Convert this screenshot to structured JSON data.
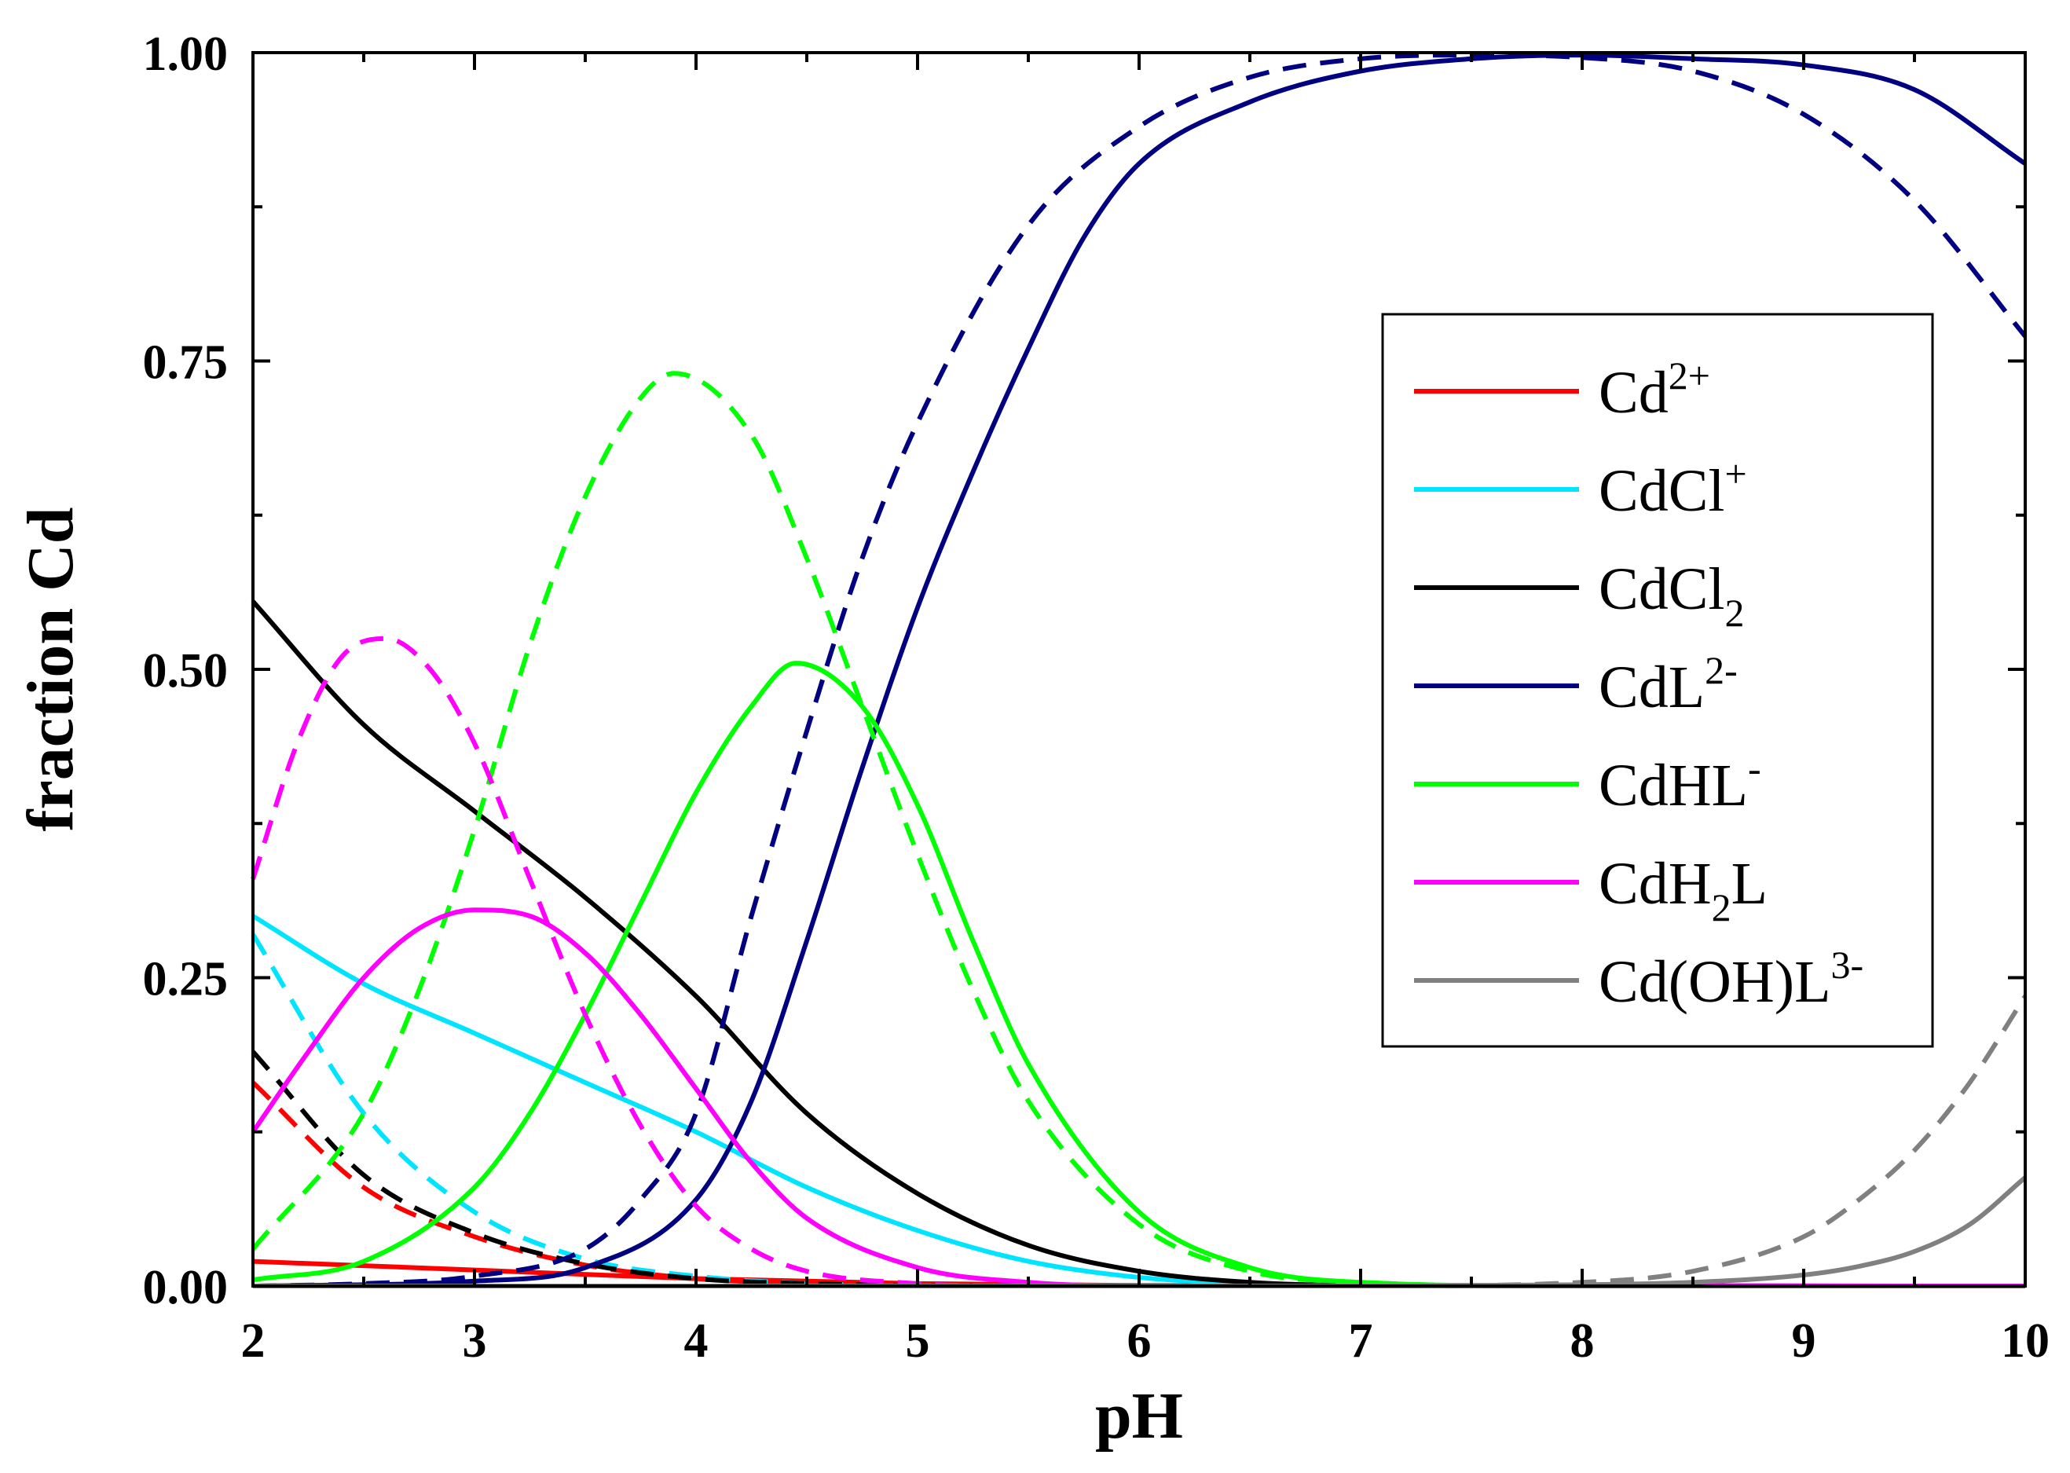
{
  "chart_data": {
    "type": "line",
    "title": "",
    "xlabel": "pH",
    "ylabel": "fraction Cd",
    "xlim": [
      2,
      10
    ],
    "ylim": [
      0,
      1
    ],
    "xticks": [
      2,
      3,
      4,
      5,
      6,
      7,
      8,
      9,
      10
    ],
    "xtick_labels": [
      "2",
      "3",
      "4",
      "5",
      "6",
      "7",
      "8",
      "9",
      "10"
    ],
    "yticks": [
      0,
      0.25,
      0.5,
      0.75,
      1.0
    ],
    "ytick_labels": [
      "0.00",
      "0.25",
      "0.50",
      "0.75",
      "1.00"
    ],
    "grid": false,
    "legend_position": "right",
    "note": "Solid and dashed line styles represent two conditions; the legend lists species only.",
    "series": [
      {
        "name": "Cd2+",
        "label_base": "Cd",
        "label_sup": "2+",
        "label_sub": "",
        "label_tail": "",
        "color": "#ff0000",
        "style": "solid",
        "in_legend": true,
        "x": [
          2,
          3,
          4,
          5,
          6,
          7,
          8,
          9,
          10
        ],
        "y": [
          0.02,
          0.013,
          0.006,
          0.002,
          0.0005,
          0,
          0,
          0,
          0
        ]
      },
      {
        "name": "Cd2+ (dashed)",
        "color": "#ff0000",
        "style": "dashed",
        "in_legend": false,
        "x": [
          2,
          2.5,
          3,
          3.5,
          4,
          4.5,
          5,
          6,
          7,
          10
        ],
        "y": [
          0.165,
          0.08,
          0.04,
          0.017,
          0.006,
          0.002,
          0.0005,
          0,
          0,
          0
        ]
      },
      {
        "name": "CdCl+",
        "label_base": "CdCl",
        "label_sup": "+",
        "label_sub": "",
        "label_tail": "",
        "color": "#00e5ff",
        "style": "solid",
        "in_legend": true,
        "x": [
          2,
          2.5,
          3,
          3.5,
          4,
          4.5,
          5,
          5.5,
          6,
          6.5,
          7,
          10
        ],
        "y": [
          0.3,
          0.245,
          0.205,
          0.165,
          0.125,
          0.08,
          0.045,
          0.02,
          0.007,
          0.002,
          0,
          0
        ]
      },
      {
        "name": "CdCl+ (dashed)",
        "color": "#00e5ff",
        "style": "dashed",
        "in_legend": false,
        "x": [
          2,
          2.5,
          3,
          3.5,
          4,
          4.5,
          5,
          6,
          10
        ],
        "y": [
          0.285,
          0.14,
          0.06,
          0.022,
          0.008,
          0.002,
          0.0005,
          0,
          0
        ]
      },
      {
        "name": "CdCl2",
        "label_base": "CdCl",
        "label_sup": "",
        "label_sub": "2",
        "label_tail": "",
        "color": "#000000",
        "style": "solid",
        "in_legend": true,
        "x": [
          2,
          2.5,
          3,
          3.5,
          4,
          4.5,
          5,
          5.5,
          6,
          6.5,
          7,
          10
        ],
        "y": [
          0.555,
          0.455,
          0.385,
          0.315,
          0.235,
          0.14,
          0.075,
          0.033,
          0.012,
          0.003,
          0.0005,
          0
        ]
      },
      {
        "name": "CdCl2 (dashed)",
        "color": "#000000",
        "style": "dashed",
        "in_legend": false,
        "x": [
          2,
          2.5,
          3,
          3.5,
          4,
          4.5,
          5,
          6,
          10
        ],
        "y": [
          0.19,
          0.09,
          0.043,
          0.018,
          0.006,
          0.002,
          0.0005,
          0,
          0
        ]
      },
      {
        "name": "CdL2-",
        "label_base": "CdL",
        "label_sup": "2-",
        "label_sub": "",
        "label_tail": "",
        "color": "#000080",
        "style": "solid",
        "in_legend": true,
        "x": [
          2,
          3,
          3.5,
          4,
          4.25,
          4.5,
          4.75,
          5,
          5.25,
          5.5,
          5.75,
          6,
          6.5,
          7,
          7.5,
          8,
          8.5,
          9,
          9.5,
          10
        ],
        "y": [
          0,
          0.004,
          0.015,
          0.07,
          0.15,
          0.28,
          0.42,
          0.55,
          0.66,
          0.76,
          0.85,
          0.91,
          0.96,
          0.985,
          0.995,
          0.998,
          0.995,
          0.99,
          0.97,
          0.91
        ]
      },
      {
        "name": "CdL2- (dashed)",
        "color": "#000080",
        "style": "dashed",
        "in_legend": false,
        "x": [
          2,
          2.5,
          3,
          3.5,
          3.75,
          4,
          4.25,
          4.5,
          4.75,
          5,
          5.5,
          6,
          6.5,
          7,
          7.5,
          8,
          8.5,
          9,
          9.5,
          10
        ],
        "y": [
          0,
          0.002,
          0.008,
          0.03,
          0.07,
          0.14,
          0.3,
          0.45,
          0.59,
          0.7,
          0.86,
          0.94,
          0.98,
          0.995,
          0.998,
          0.996,
          0.985,
          0.95,
          0.88,
          0.77
        ]
      },
      {
        "name": "CdHL-",
        "label_base": "CdHL",
        "label_sup": "-",
        "label_sub": "",
        "label_tail": "",
        "color": "#00ff00",
        "style": "solid",
        "in_legend": true,
        "x": [
          2,
          2.5,
          3,
          3.25,
          3.5,
          3.75,
          4,
          4.25,
          4.45,
          4.75,
          5,
          5.25,
          5.5,
          6,
          6.5,
          7,
          8,
          10
        ],
        "y": [
          0.005,
          0.02,
          0.08,
          0.14,
          0.22,
          0.31,
          0.4,
          0.47,
          0.505,
          0.47,
          0.39,
          0.28,
          0.18,
          0.06,
          0.015,
          0.003,
          0,
          0
        ]
      },
      {
        "name": "CdHL- (dashed)",
        "color": "#00ff00",
        "style": "dashed",
        "in_legend": false,
        "x": [
          2,
          2.5,
          2.75,
          3,
          3.25,
          3.5,
          3.75,
          3.9,
          4.25,
          4.5,
          4.75,
          5,
          5.25,
          5.5,
          6,
          6.5,
          7,
          8,
          10
        ],
        "y": [
          0.03,
          0.14,
          0.24,
          0.37,
          0.52,
          0.64,
          0.72,
          0.74,
          0.69,
          0.59,
          0.47,
          0.35,
          0.24,
          0.15,
          0.05,
          0.012,
          0.003,
          0,
          0
        ]
      },
      {
        "name": "CdH2L",
        "label_base": "CdH",
        "label_sup": "",
        "label_sub": "2",
        "label_tail": "L",
        "color": "#ff00ff",
        "style": "solid",
        "in_legend": true,
        "x": [
          2,
          2.25,
          2.5,
          2.75,
          3,
          3.25,
          3.5,
          3.75,
          4,
          4.25,
          4.5,
          5,
          5.5,
          6,
          10
        ],
        "y": [
          0.125,
          0.19,
          0.25,
          0.29,
          0.305,
          0.3,
          0.27,
          0.22,
          0.16,
          0.1,
          0.055,
          0.015,
          0.003,
          0,
          0
        ]
      },
      {
        "name": "CdH2L (dashed)",
        "color": "#ff00ff",
        "style": "dashed",
        "in_legend": false,
        "x": [
          2,
          2.2,
          2.4,
          2.6,
          2.8,
          3,
          3.25,
          3.5,
          3.75,
          4,
          4.25,
          4.5,
          5,
          5.5,
          10
        ],
        "y": [
          0.33,
          0.44,
          0.51,
          0.525,
          0.5,
          0.44,
          0.33,
          0.22,
          0.13,
          0.065,
          0.03,
          0.012,
          0.002,
          0,
          0
        ]
      },
      {
        "name": "Cd(OH)L3-",
        "label_base": "Cd(OH)L",
        "label_sup": "3-",
        "label_sub": "",
        "label_tail": "",
        "color": "#808080",
        "style": "solid",
        "in_legend": true,
        "x": [
          2,
          7,
          8,
          8.5,
          9,
          9.25,
          9.5,
          9.75,
          10
        ],
        "y": [
          0,
          0,
          0.001,
          0.003,
          0.009,
          0.016,
          0.028,
          0.05,
          0.088
        ]
      },
      {
        "name": "Cd(OH)L3- (dashed)",
        "color": "#808080",
        "style": "dashed",
        "in_legend": false,
        "x": [
          2,
          7,
          8,
          8.5,
          9,
          9.25,
          9.5,
          9.75,
          10
        ],
        "y": [
          0,
          0,
          0.003,
          0.012,
          0.04,
          0.07,
          0.11,
          0.165,
          0.235
        ]
      }
    ]
  }
}
